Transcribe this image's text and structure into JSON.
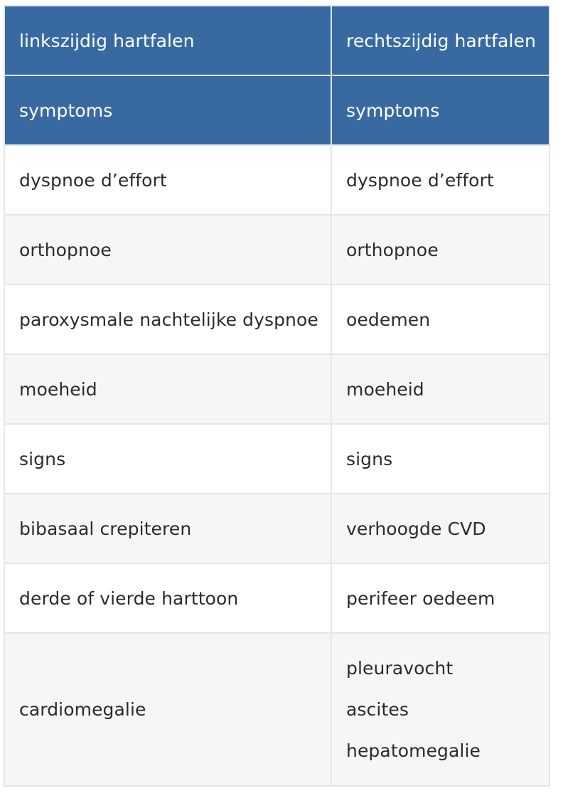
{
  "table": {
    "header_row_1": [
      "linkszijdig hartfalen",
      "rechtszijdig hartfalen"
    ],
    "header_row_2": [
      "symptoms",
      "symptoms"
    ],
    "rows": [
      [
        "dyspnoe d’effort",
        "dyspnoe d’effort"
      ],
      [
        "orthopnoe",
        "orthopnoe"
      ],
      [
        "paroxysmale nachtelijke dyspnoe",
        "oedemen"
      ],
      [
        "moeheid",
        "moeheid"
      ],
      [
        "signs",
        "signs"
      ],
      [
        "bibasaal crepiteren",
        "verhoogde CVD"
      ],
      [
        "derde of vierde harttoon",
        "perifeer oedeem"
      ]
    ],
    "last_row": {
      "left": "cardiomegalie",
      "right_lines": [
        "pleuravocht",
        "ascites",
        "hepatomegalie"
      ]
    }
  },
  "colors": {
    "header_bg": "#386aa1",
    "header_text": "#ffffff",
    "body_text": "#2b2b2b",
    "stripe": "#f6f6f6",
    "border": "#e6e6e6"
  }
}
